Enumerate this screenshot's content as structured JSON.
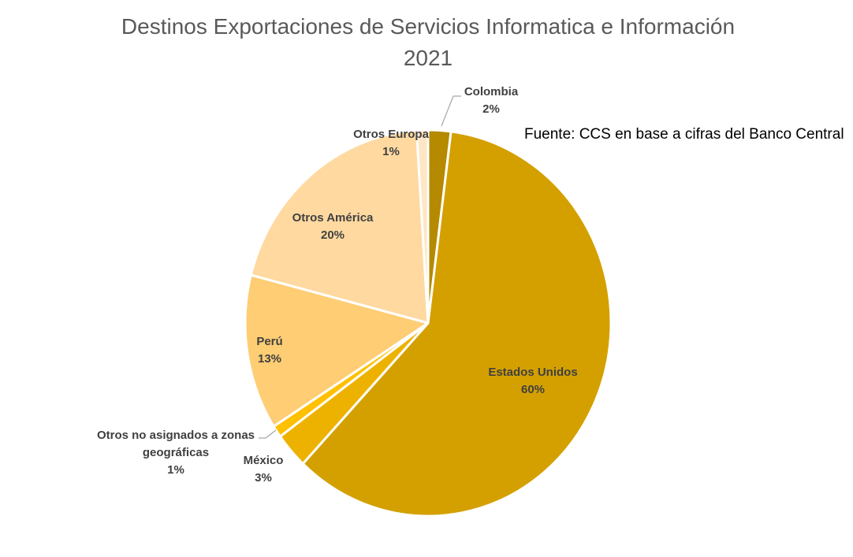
{
  "chart_data": {
    "type": "pie",
    "title": "Destinos Exportaciones de Servicios Informatica e Información",
    "subtitle": "2021",
    "source_note": "Fuente: CCS en base a cifras del Banco Central",
    "start_angle": "top",
    "direction": "clockwise",
    "slices": [
      {
        "label": "Colombia",
        "value": 2,
        "pct": "2%",
        "color": "#B58900"
      },
      {
        "label": "Estados Unidos",
        "value": 60,
        "pct": "60%",
        "color": "#D4A000"
      },
      {
        "label": "México",
        "value": 3,
        "pct": "3%",
        "color": "#EDB200"
      },
      {
        "label": "Otros no asignados a zonas geográficas",
        "value": 1,
        "pct": "1%",
        "color": "#FFC000"
      },
      {
        "label": "Perú",
        "value": 13,
        "pct": "13%",
        "color": "#FECD74"
      },
      {
        "label": "Otros América",
        "value": 20,
        "pct": "20%",
        "color": "#FFD9A0"
      },
      {
        "label": "Otros Europa",
        "value": 1,
        "pct": "1%",
        "color": "#FFE6C4"
      }
    ]
  }
}
